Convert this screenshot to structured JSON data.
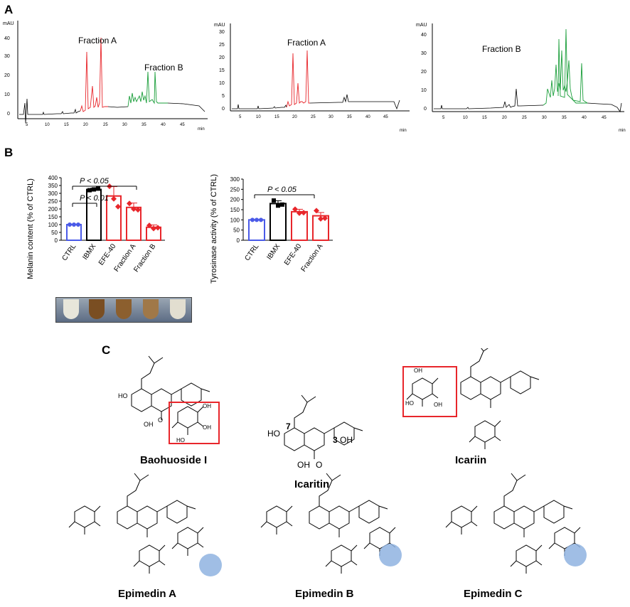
{
  "panels": {
    "a": "A",
    "b": "B",
    "c": "C"
  },
  "chromatograms": [
    {
      "ylabel": "mAU",
      "xunit": "min",
      "yticks": [
        "0",
        "10",
        "20",
        "30",
        "40"
      ],
      "xticks": [
        "5",
        "10",
        "15",
        "20",
        "25",
        "30",
        "35",
        "40",
        "45"
      ],
      "annotations": [
        "Fraction A",
        "Fraction B"
      ]
    },
    {
      "ylabel": "mAU",
      "xunit": "min",
      "yticks": [
        "0",
        "5",
        "10",
        "15",
        "20",
        "25",
        "30"
      ],
      "xticks": [
        "5",
        "10",
        "15",
        "20",
        "25",
        "30",
        "35",
        "40",
        "45"
      ],
      "annotations": [
        "Fraction A"
      ]
    },
    {
      "ylabel": "mAU",
      "xunit": "min",
      "yticks": [
        "0",
        "10",
        "20",
        "30",
        "40"
      ],
      "xticks": [
        "5",
        "10",
        "15",
        "20",
        "25",
        "30",
        "35",
        "40",
        "45"
      ],
      "annotations": [
        "Fraction B"
      ]
    }
  ],
  "chart_data": [
    {
      "type": "bar",
      "ylabel": "Melanin content (% of CTRL)",
      "ylim": [
        0,
        400
      ],
      "yticks": [
        "0",
        "50",
        "100",
        "150",
        "200",
        "250",
        "300",
        "350",
        "400"
      ],
      "categories": [
        "CTRL",
        "IBMX",
        "EFE-40",
        "Fraction A",
        "Fraction B"
      ],
      "values": [
        100,
        325,
        283,
        210,
        83
      ],
      "errors": [
        3,
        8,
        60,
        28,
        15
      ],
      "colors": [
        "#4a5ae8",
        "#000000",
        "#e8262b",
        "#e8262b",
        "#e8262b"
      ],
      "points": [
        [
          100,
          100,
          100
        ],
        [
          320,
          325,
          330
        ],
        [
          345,
          265,
          215
        ],
        [
          235,
          200,
          195
        ],
        [
          95,
          75,
          80
        ]
      ],
      "annotations": [
        "P < 0.05",
        "P < 0.01"
      ]
    },
    {
      "type": "bar",
      "ylabel": "Tyrosinase activity (% of CTRL)",
      "ylim": [
        0,
        300
      ],
      "yticks": [
        "0",
        "50",
        "100",
        "150",
        "200",
        "250",
        "300"
      ],
      "categories": [
        "CTRL",
        "IBMX",
        "EFE-40",
        "Fraction A"
      ],
      "values": [
        100,
        180,
        140,
        120
      ],
      "errors": [
        2,
        14,
        12,
        16
      ],
      "colors": [
        "#4a5ae8",
        "#000000",
        "#e8262b",
        "#e8262b"
      ],
      "points": [
        [
          100,
          100,
          100
        ],
        [
          195,
          170,
          175
        ],
        [
          152,
          133,
          135
        ],
        [
          145,
          105,
          108
        ]
      ],
      "annotations": [
        "P < 0.05"
      ]
    }
  ],
  "compounds": {
    "baohuoside": "Baohuoside I",
    "icaritin": "Icaritin",
    "icariin": "Icariin",
    "epimedin_a": "Epimedin A",
    "epimedin_b": "Epimedin B",
    "epimedin_c": "Epimedin C"
  },
  "atom_labels": {
    "ho": "HO",
    "oh": "OH",
    "o": "O",
    "num7": "7",
    "num3": "3"
  },
  "colors": {
    "red": "#e8262b",
    "green": "#1a9e3a",
    "blue_circle": "#8fb3e0",
    "ctrl_blue": "#4a5ae8"
  }
}
